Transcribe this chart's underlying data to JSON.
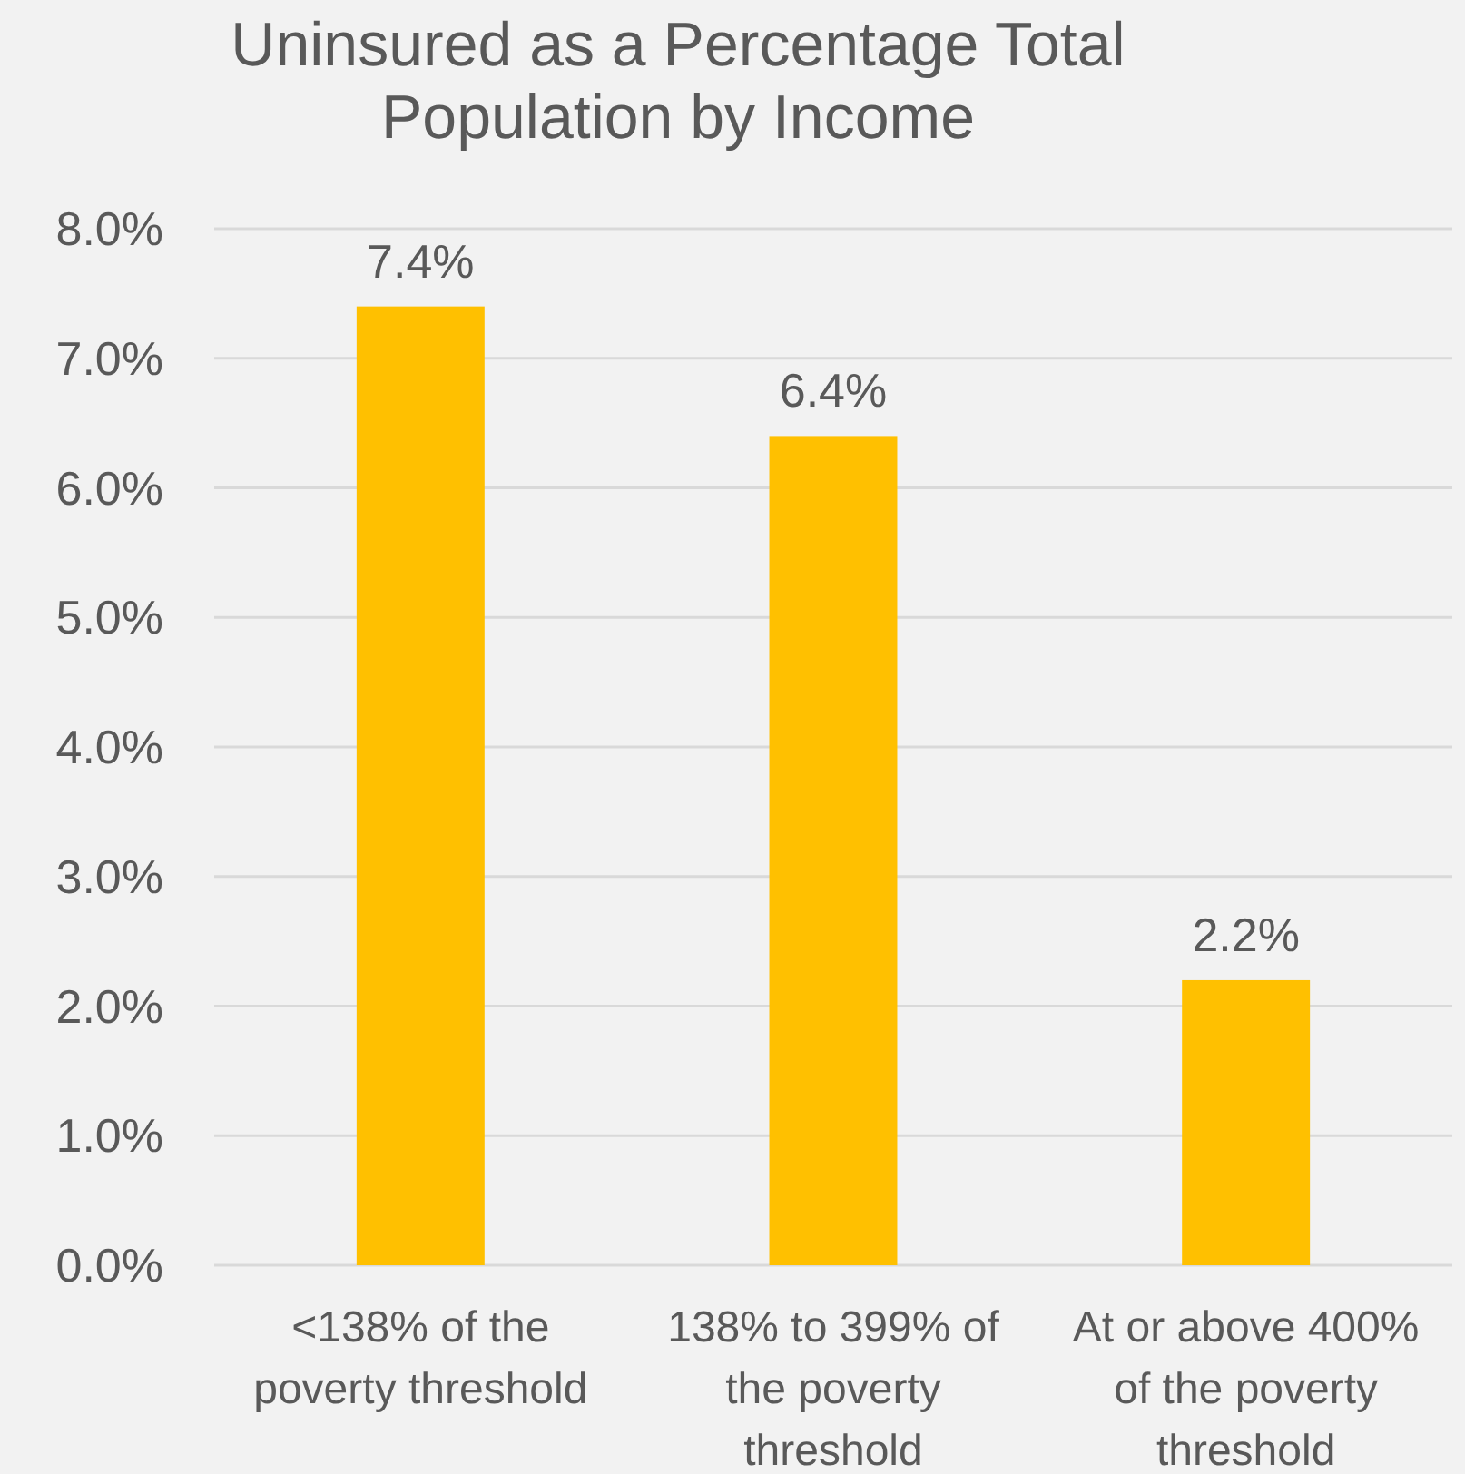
{
  "chart_data": {
    "type": "bar",
    "title": "Uninsured as a Percentage Total Population by Income",
    "categories": [
      "<138% of the poverty threshold",
      "138% to 399% of the poverty threshold",
      "At or above 400% of the poverty threshold"
    ],
    "values": [
      7.4,
      6.4,
      2.2
    ],
    "color": "#ffc000",
    "value_labels": [
      "7.4%",
      "6.4%",
      "2.2%"
    ],
    "ylim": [
      0,
      8
    ],
    "yticks": [
      {
        "value": 0,
        "label": "0.0%"
      },
      {
        "value": 1,
        "label": "1.0%"
      },
      {
        "value": 2,
        "label": "2.0%"
      },
      {
        "value": 3,
        "label": "3.0%"
      },
      {
        "value": 4,
        "label": "4.0%"
      },
      {
        "value": 5,
        "label": "5.0%"
      },
      {
        "value": 6,
        "label": "6.0%"
      },
      {
        "value": 7,
        "label": "7.0%"
      },
      {
        "value": 8,
        "label": "8.0%"
      }
    ],
    "grid": "y"
  }
}
